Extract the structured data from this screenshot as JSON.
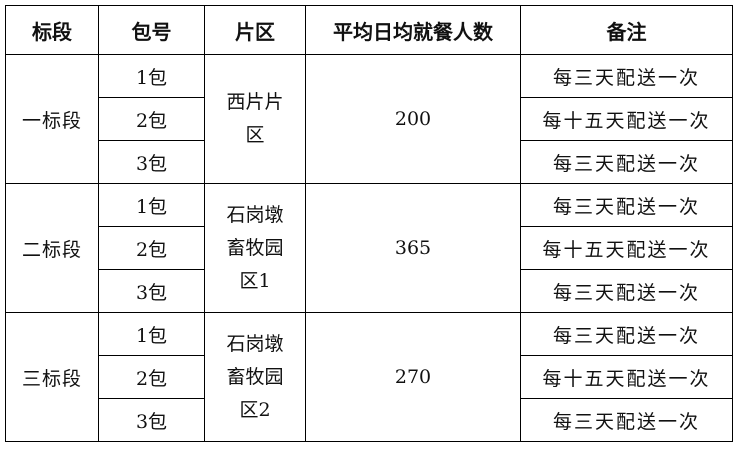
{
  "headers": [
    "标段",
    "包号",
    "片区",
    "平均日均就餐人数",
    "备注"
  ],
  "groups": [
    {
      "section": "一标段",
      "zone": "西片片区",
      "avg_daily_diners": "200",
      "packages": [
        {
          "package": "1包",
          "remark": "每三天配送一次"
        },
        {
          "package": "2包",
          "remark": "每十五天配送一次"
        },
        {
          "package": "3包",
          "remark": "每三天配送一次"
        }
      ]
    },
    {
      "section": "二标段",
      "zone": "石岗墩畜牧园区1",
      "avg_daily_diners": "365",
      "packages": [
        {
          "package": "1包",
          "remark": "每三天配送一次"
        },
        {
          "package": "2包",
          "remark": "每十五天配送一次"
        },
        {
          "package": "3包",
          "remark": "每三天配送一次"
        }
      ]
    },
    {
      "section": "三标段",
      "zone": "石岗墩畜牧园区2",
      "avg_daily_diners": "270",
      "packages": [
        {
          "package": "1包",
          "remark": "每三天配送一次"
        },
        {
          "package": "2包",
          "remark": "每十五天配送一次"
        },
        {
          "package": "3包",
          "remark": "每三天配送一次"
        }
      ]
    }
  ]
}
